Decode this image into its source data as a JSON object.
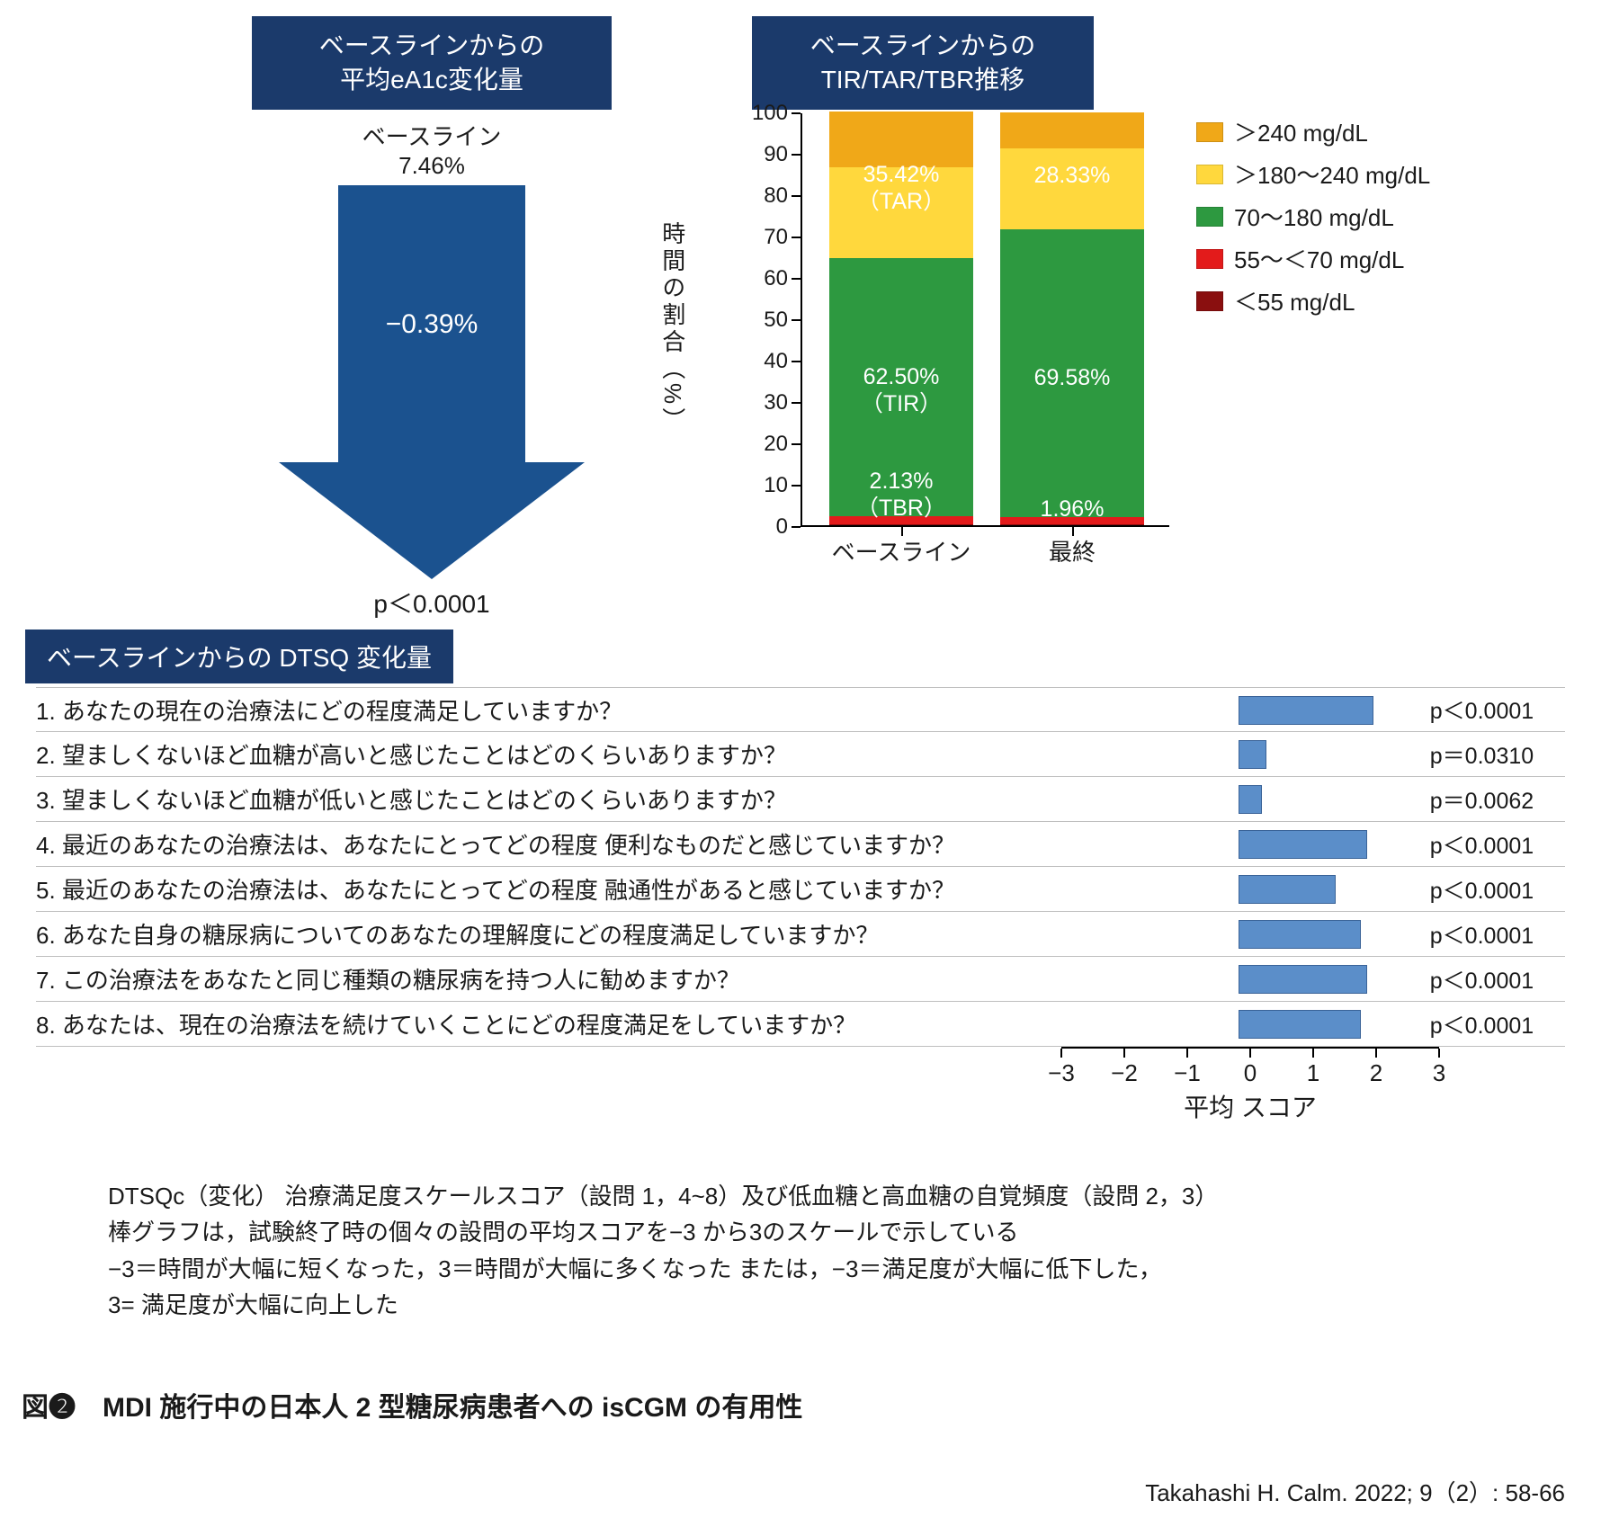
{
  "colors": {
    "header_bg": "#1b3a6b",
    "arrow_fill": "#1b528f",
    "hbar_fill": "#5b8ec9",
    "hbar_border": "#3a6398",
    "seg_above240": "#f0a818",
    "seg_180_240": "#ffd83d",
    "seg_70_180": "#2d9940",
    "seg_55_70": "#e31b1b",
    "seg_below55": "#8a0f0f",
    "rule": "#bfbfbf"
  },
  "left_panel": {
    "header_l1": "ベースラインからの",
    "header_l2": "平均eA1c変化量",
    "baseline_label": "ベースライン",
    "baseline_value": "7.46%",
    "change_value": "−0.39%",
    "p_value": "p＜0.0001"
  },
  "right_panel": {
    "header_l1": "ベースラインからの",
    "header_l2": "TIR/TAR/TBR推移",
    "y_title": "時間の割合（%）",
    "y_max": 100,
    "y_ticks": [
      0,
      10,
      20,
      30,
      40,
      50,
      60,
      70,
      80,
      90,
      100
    ],
    "categories": [
      "ベースライン",
      "最終"
    ],
    "legend": [
      {
        "label": "＞240 mg/dL",
        "color": "#f0a818"
      },
      {
        "label": "＞180〜240 mg/dL",
        "color": "#ffd83d"
      },
      {
        "label": "70〜180 mg/dL",
        "color": "#2d9940"
      },
      {
        "label": "55〜＜70 mg/dL",
        "color": "#e31b1b"
      },
      {
        "label": "＜55 mg/dL",
        "color": "#8a0f0f"
      }
    ],
    "bars": [
      {
        "below55": 0.2,
        "r55_70": 1.93,
        "r70_180": 62.5,
        "r180_240": 22.0,
        "above240": 13.42,
        "labels": {
          "tar": "35.42%",
          "tar2": "（TAR）",
          "tir": "62.50%",
          "tir2": "（TIR）",
          "tbr": "2.13%",
          "tbr2": "（TBR）"
        }
      },
      {
        "below55": 0.15,
        "r55_70": 1.81,
        "r70_180": 69.58,
        "r180_240": 19.5,
        "above240": 8.83,
        "labels": {
          "tar": "28.33%",
          "tar2": "",
          "tir": "69.58%",
          "tir2": "",
          "tbr": "1.96%",
          "tbr2": ""
        }
      }
    ]
  },
  "dtsq": {
    "header": "ベースラインからの DTSQ 変化量",
    "x_min": -3,
    "x_max": 3,
    "x_ticks": [
      -3,
      -2,
      -1,
      0,
      1,
      2,
      3
    ],
    "x_title": "平均 スコア",
    "rows": [
      {
        "q": "1. あなたの現在の治療法にどの程度満足していますか？",
        "val": 2.15,
        "p": "p＜0.0001"
      },
      {
        "q": "2. 望ましくないほど血糖が高いと感じたことはどのくらいありますか？",
        "val": 0.45,
        "p": "p＝0.0310"
      },
      {
        "q": "3. 望ましくないほど血糖が低いと感じたことはどのくらいありますか？",
        "val": 0.38,
        "p": "p＝0.0062"
      },
      {
        "q": "4. 最近のあなたの治療法は、あなたにとってどの程度 便利なものだと感じていますか？",
        "val": 2.05,
        "p": "p＜0.0001"
      },
      {
        "q": "5. 最近のあなたの治療法は、あなたにとってどの程度 融通性があると感じていますか？",
        "val": 1.55,
        "p": "p＜0.0001"
      },
      {
        "q": "6. あなた自身の糖尿病についてのあなたの理解度にどの程度満足していますか？",
        "val": 1.95,
        "p": "p＜0.0001"
      },
      {
        "q": "7. この治療法をあなたと同じ種類の糖尿病を持つ人に勧めますか？",
        "val": 2.05,
        "p": "p＜0.0001"
      },
      {
        "q": "8. あなたは、現在の治療法を続けていくことにどの程度満足をしていますか？",
        "val": 1.95,
        "p": "p＜0.0001"
      }
    ]
  },
  "footnotes": [
    "DTSQc（変化） 治療満足度スケールスコア（設問 1，4~8）及び低血糖と高血糖の自覚頻度（設問 2，3）",
    "棒グラフは，試験終了時の個々の設問の平均スコアを−3 から3のスケールで示している",
    "−3＝時間が大幅に短くなった，3＝時間が大幅に多くなった または，−3＝満足度が大幅に低下した，",
    " 3= 満足度が大幅に向上した"
  ],
  "figure_title": "図❷　MDI 施行中の日本人 2 型糖尿病患者への isCGM の有用性",
  "citation": "Takahashi H. Calm. 2022; 9（2）: 58-66"
}
